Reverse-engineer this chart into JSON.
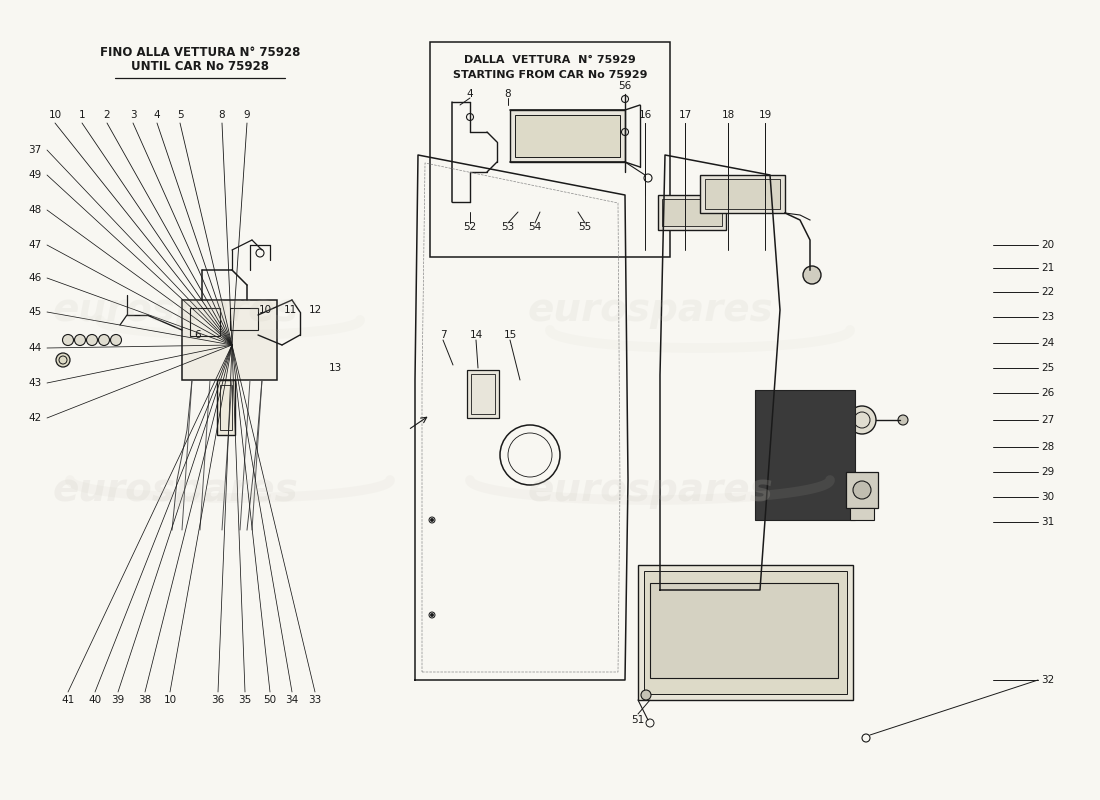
{
  "bg": "#f8f7f2",
  "line_color": "#1a1a1a",
  "watermark_color": "#c8c5bb",
  "box1_line1": "FINO ALLA VETTURA N° 75928",
  "box1_line2": "UNTIL CAR No 75928",
  "box2_line1": "DALLA  VETTURA  N° 75929",
  "box2_line2": "STARTING FROM CAR No 75929"
}
